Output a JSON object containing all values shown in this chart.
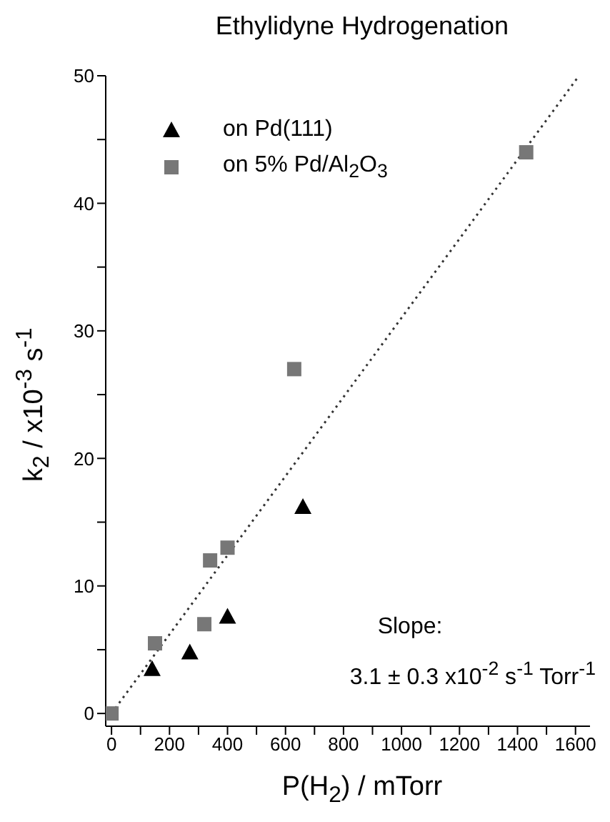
{
  "chart_data": {
    "type": "scatter",
    "title": "Ethylidyne Hydrogenation",
    "xlabel": "P(H$_{2}$) / mTorr",
    "ylabel": "k$_{2}$ / x10$^{-3}$ s$^{-1}$",
    "annotations": [
      "Slope:",
      "3.1 ± 0.3 x10$^{-2}$ s$^{-1}$ Torr$^{-1}$"
    ],
    "xlim": [
      -20,
      1650
    ],
    "ylim": [
      -1,
      50
    ],
    "xticks": [
      0,
      {
        "value": 100,
        "label": null
      },
      200,
      {
        "value": 300,
        "label": null
      },
      400,
      {
        "value": 500,
        "label": null
      },
      600,
      {
        "value": 700,
        "label": null
      },
      800,
      {
        "value": 900,
        "label": null
      },
      1000,
      {
        "value": 1100,
        "label": null
      },
      1200,
      {
        "value": 1300,
        "label": null
      },
      1400,
      {
        "value": 1500,
        "label": null
      },
      1600
    ],
    "yticks": [
      0,
      {
        "value": 5,
        "label": null
      },
      10,
      {
        "value": 15,
        "label": null
      },
      20,
      {
        "value": 25,
        "label": null
      },
      30,
      {
        "value": 35,
        "label": null
      },
      40,
      {
        "value": 45,
        "label": null
      },
      50
    ],
    "legend": "top left",
    "series": [
      {
        "name": "on Pd(111)",
        "marker": "triangle",
        "color": "#000000",
        "x": [
          140,
          270,
          400,
          660
        ],
        "values": [
          3.5,
          4.8,
          7.6,
          16.2
        ]
      },
      {
        "name": "on 5% Pd/Al$_{2}$O$_{3}$",
        "marker": "square",
        "color": "#777777",
        "x": [
          0,
          150,
          320,
          340,
          400,
          630,
          1430
        ],
        "values": [
          0,
          5.5,
          7,
          12,
          13,
          27,
          44
        ]
      },
      {
        "type": "line",
        "marker": "none",
        "line_style": "dotted",
        "color": "#333333",
        "x": [
          0,
          1612
        ],
        "values": [
          0,
          50
        ]
      }
    ]
  }
}
